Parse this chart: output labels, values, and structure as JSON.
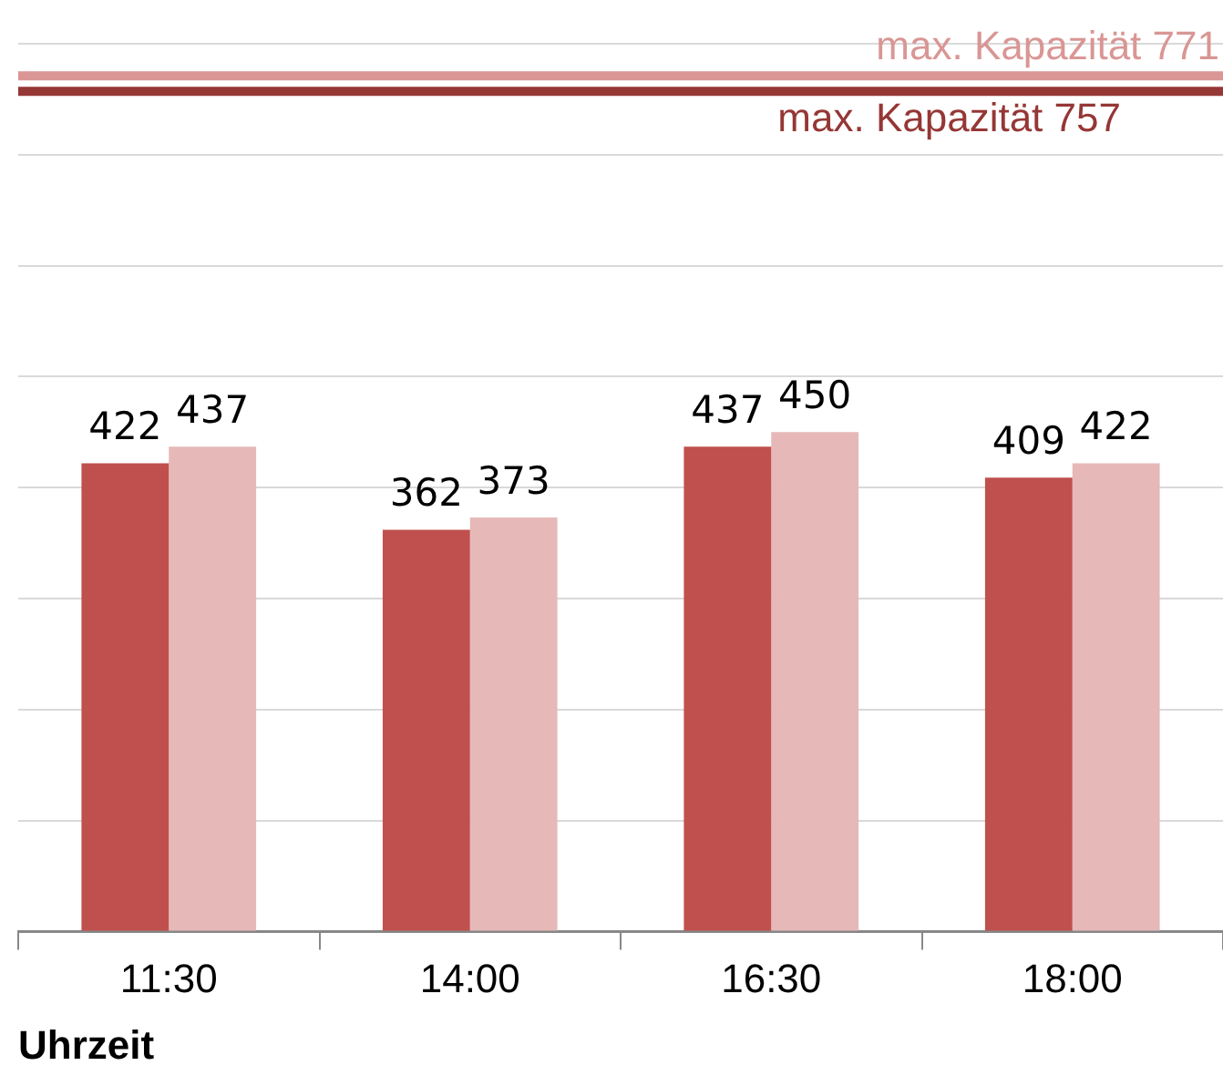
{
  "chart_data": {
    "type": "bar",
    "xlabel": "Uhrzeit",
    "categories": [
      "11:30",
      "14:00",
      "16:30",
      "18:00"
    ],
    "series": [
      {
        "color": "#c0504d",
        "values": [
          422,
          362,
          437,
          409
        ]
      },
      {
        "color": "#e6b9b8",
        "values": [
          437,
          373,
          450,
          422
        ]
      }
    ],
    "ylim": [
      0,
      800
    ],
    "yticks": [
      {
        "value": 0,
        "label": null
      },
      {
        "value": 100,
        "label": null
      },
      {
        "value": 200,
        "label": null
      },
      {
        "value": 300,
        "label": null
      },
      {
        "value": 400,
        "label": null
      },
      {
        "value": 500,
        "label": null
      },
      {
        "value": 600,
        "label": null
      },
      {
        "value": 700,
        "label": null
      },
      {
        "value": 800,
        "label": null
      }
    ],
    "tick_labels": "x",
    "grid": "y",
    "data_labels": true,
    "ref_lines": [
      {
        "axis": "y",
        "value": 771,
        "label": "max. Kapazität 771",
        "color": "#d99694"
      },
      {
        "axis": "y",
        "value": 757,
        "label": "max. Kapazität 757",
        "color": "#953735"
      }
    ]
  }
}
